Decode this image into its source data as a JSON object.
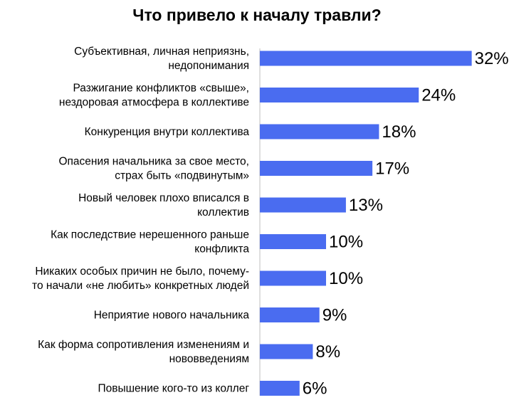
{
  "chart_data": {
    "type": "bar",
    "orientation": "horizontal",
    "title": "Что привело к началу травли?",
    "unit": "%",
    "xlim": [
      0,
      32
    ],
    "grid": false,
    "legend": "none",
    "bar_color": "#4a6cf0",
    "categories": [
      [
        "Субъективная, личная неприязнь,",
        "недопонимания"
      ],
      [
        "Разжигание конфликтов «свыше»,",
        "нездоровая атмосфера в коллективе"
      ],
      [
        "Конкуренция внутри коллектива"
      ],
      [
        "Опасения начальника за свое место,",
        "страх быть «подвинутым»"
      ],
      [
        "Новый человек плохо вписался в",
        "коллектив"
      ],
      [
        "Как последствие нерешенного раньше",
        "конфликта"
      ],
      [
        "Никаких особых причин не было, почему-",
        "то начали «не любить» конкретных людей"
      ],
      [
        "Неприятие нового начальника"
      ],
      [
        "Как форма сопротивления изменениям  и",
        "нововведениям"
      ],
      [
        "Повышение кого-то из коллег"
      ]
    ],
    "values": [
      32,
      24,
      18,
      17,
      13,
      10,
      10,
      9,
      8,
      6
    ],
    "value_labels": [
      "32%",
      "24%",
      "18%",
      "17%",
      "13%",
      "10%",
      "10%",
      "9%",
      "8%",
      "6%"
    ]
  }
}
